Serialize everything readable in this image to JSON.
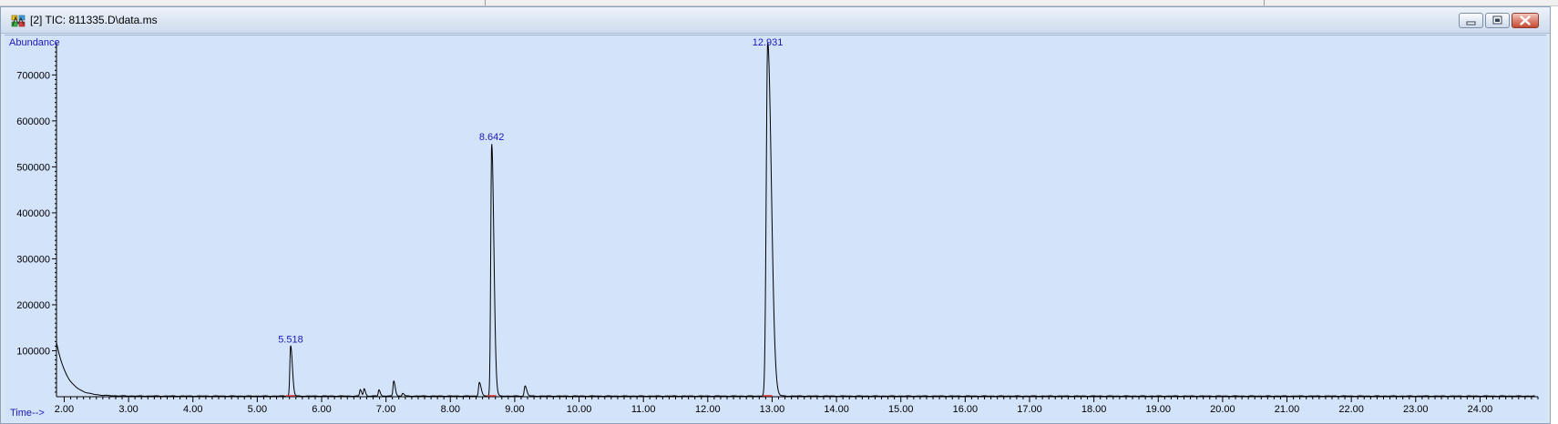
{
  "window": {
    "title": "[2] TIC: 811335.D\\data.ms",
    "icon": "chromatogram-app-icon",
    "controls": [
      "minimize",
      "maximize",
      "close"
    ]
  },
  "chart_data": {
    "type": "line",
    "title": "",
    "xlabel": "Time-->",
    "ylabel": "Abundance",
    "xlim": [
      1.88,
      24.9
    ],
    "ylim": [
      0,
      770000
    ],
    "x_ticks": [
      2.0,
      3.0,
      4.0,
      5.0,
      6.0,
      7.0,
      8.0,
      9.0,
      10.0,
      11.0,
      12.0,
      13.0,
      14.0,
      15.0,
      16.0,
      17.0,
      18.0,
      19.0,
      20.0,
      21.0,
      22.0,
      23.0,
      24.0
    ],
    "x_tick_labels": [
      "2.00",
      "3.00",
      "4.00",
      "5.00",
      "6.00",
      "7.00",
      "8.00",
      "9.00",
      "10.00",
      "11.00",
      "12.00",
      "13.00",
      "14.00",
      "15.00",
      "16.00",
      "17.00",
      "18.00",
      "19.00",
      "20.00",
      "21.00",
      "22.00",
      "23.00",
      "24.00"
    ],
    "y_ticks": [
      100000,
      200000,
      300000,
      400000,
      500000,
      600000,
      700000
    ],
    "y_tick_labels": [
      "100000",
      "200000",
      "300000",
      "400000",
      "500000",
      "600000",
      "700000"
    ],
    "grid": false,
    "colors": {
      "trace": "#000000",
      "labels": "#1a1ab8",
      "baseline_marks": "#e03030",
      "plot_bg": "#d3e3fa"
    },
    "baseline": 1500,
    "initial_decay": {
      "start_x": 1.88,
      "start_y": 118000,
      "tau": 0.17
    },
    "peaks": [
      {
        "rt": 5.518,
        "height": 110000,
        "width": 0.012,
        "tail": 0.015,
        "label": "5.518"
      },
      {
        "rt": 6.6,
        "height": 14000,
        "width": 0.01,
        "tail": 0.01
      },
      {
        "rt": 6.66,
        "height": 16000,
        "width": 0.01,
        "tail": 0.01
      },
      {
        "rt": 6.89,
        "height": 14000,
        "width": 0.01,
        "tail": 0.01
      },
      {
        "rt": 7.12,
        "height": 33000,
        "width": 0.011,
        "tail": 0.012
      },
      {
        "rt": 7.26,
        "height": 6000,
        "width": 0.01,
        "tail": 0.01
      },
      {
        "rt": 8.45,
        "height": 30000,
        "width": 0.012,
        "tail": 0.015
      },
      {
        "rt": 8.642,
        "height": 550000,
        "width": 0.014,
        "tail": 0.02,
        "label": "8.642"
      },
      {
        "rt": 9.16,
        "height": 22000,
        "width": 0.012,
        "tail": 0.015
      },
      {
        "rt": 12.931,
        "height": 770000,
        "width": 0.022,
        "tail": 0.035,
        "label": "12.931"
      }
    ]
  }
}
